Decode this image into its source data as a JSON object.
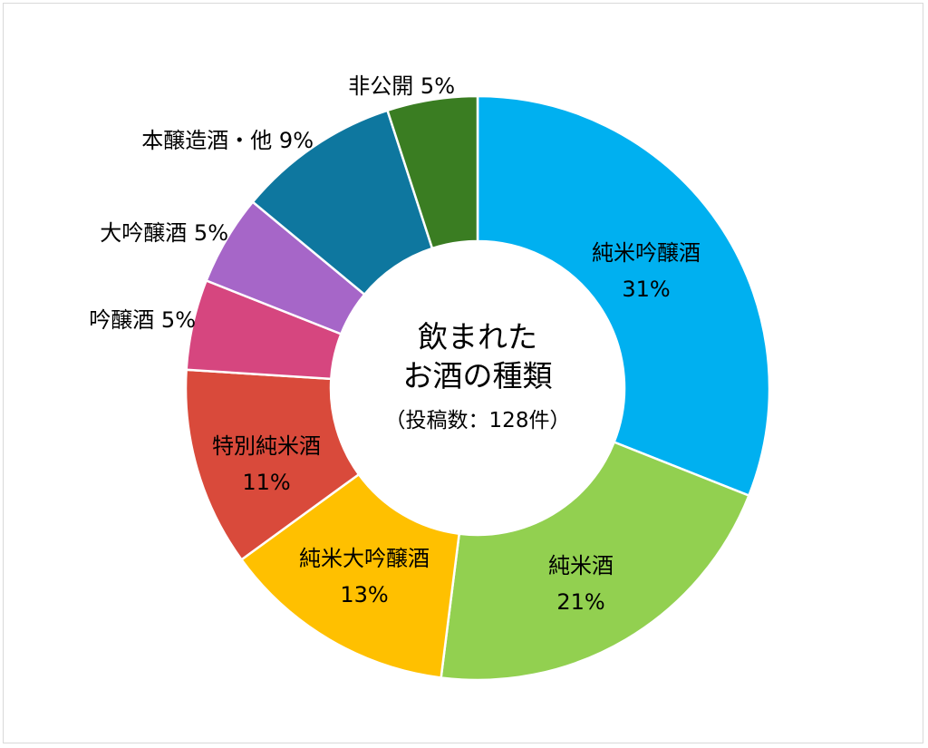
{
  "chart_data": {
    "type": "pie",
    "variant": "donut",
    "title_lines": [
      "飲まれた",
      "お酒の種類"
    ],
    "subtitle": "（投稿数：128件）",
    "slices": [
      {
        "label": "純米吟醸酒",
        "percent_text": "31%",
        "value": 31,
        "color": "#00b0f0",
        "label_pos": "inside",
        "text_color": "#000000"
      },
      {
        "label": "純米酒",
        "percent_text": "21%",
        "value": 21,
        "color": "#92d050",
        "label_pos": "inside",
        "text_color": "#000000"
      },
      {
        "label": "純米大吟醸酒",
        "percent_text": "13%",
        "value": 13,
        "color": "#ffc000",
        "label_pos": "inside",
        "text_color": "#000000"
      },
      {
        "label": "特別純米酒",
        "percent_text": "11%",
        "value": 11,
        "color": "#d94a3b",
        "label_pos": "inside",
        "text_color": "#000000"
      },
      {
        "label": "吟醸酒",
        "percent_text": "5%",
        "value": 5,
        "color": "#d6467f",
        "label_pos": "outside",
        "text_color": "#000000"
      },
      {
        "label": "大吟醸酒",
        "percent_text": "5%",
        "value": 5,
        "color": "#a666c8",
        "label_pos": "outside",
        "text_color": "#000000"
      },
      {
        "label": "本醸造酒・他",
        "percent_text": "9%",
        "value": 9,
        "color": "#0e779f",
        "label_pos": "outside",
        "text_color": "#000000"
      },
      {
        "label": "非公開",
        "percent_text": "5%",
        "value": 5,
        "color": "#3a7d22",
        "label_pos": "outside",
        "text_color": "#000000"
      }
    ]
  }
}
